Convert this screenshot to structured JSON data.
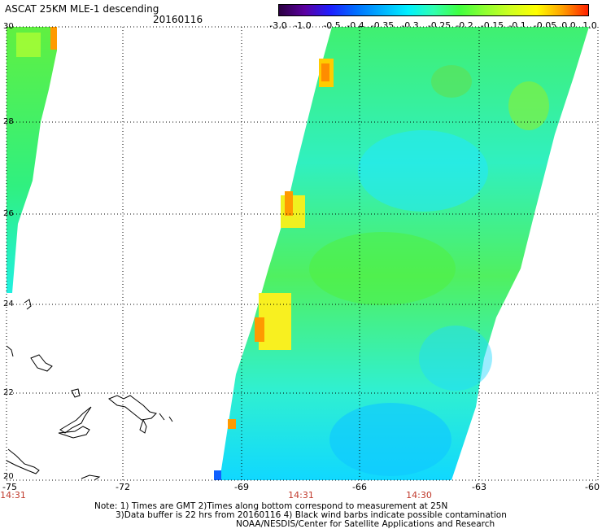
{
  "header": {
    "title": "ASCAT 25KM MLE-1 descending",
    "date": "20160116"
  },
  "colorbar": {
    "labels": [
      "-3.0",
      "-1.0",
      "-0.5",
      "-0.4",
      "-0.35",
      "-0.3",
      "-0.25",
      "-0.2",
      "-0.15",
      "-0.1",
      "-0.05",
      "0.0",
      "1.0"
    ],
    "colors": [
      "#2a0040",
      "#5b00a0",
      "#1e1eff",
      "#0070ff",
      "#00b0ff",
      "#00f0ff",
      "#30ffb0",
      "#40ff40",
      "#90ff30",
      "#d0ff20",
      "#ffff00",
      "#ffa000",
      "#ff2000"
    ]
  },
  "axes": {
    "y_labels": [
      "30",
      "28",
      "26",
      "24",
      "22",
      "20"
    ],
    "x_labels": [
      "-75",
      "-72",
      "-69",
      "-66",
      "-63",
      "-60"
    ],
    "time_labels": [
      "14:31",
      "14:31",
      "14:30"
    ]
  },
  "notes": {
    "line1": "Note: 1) Times are GMT 2)Times along bottom correspond to measurement at 25N",
    "line2": "3)Data buffer is 22 hrs from 20160116 4) Black wind barbs indicate possible contamination",
    "line3": "NOAA/NESDIS/Center for Satellite Applications and Research"
  }
}
